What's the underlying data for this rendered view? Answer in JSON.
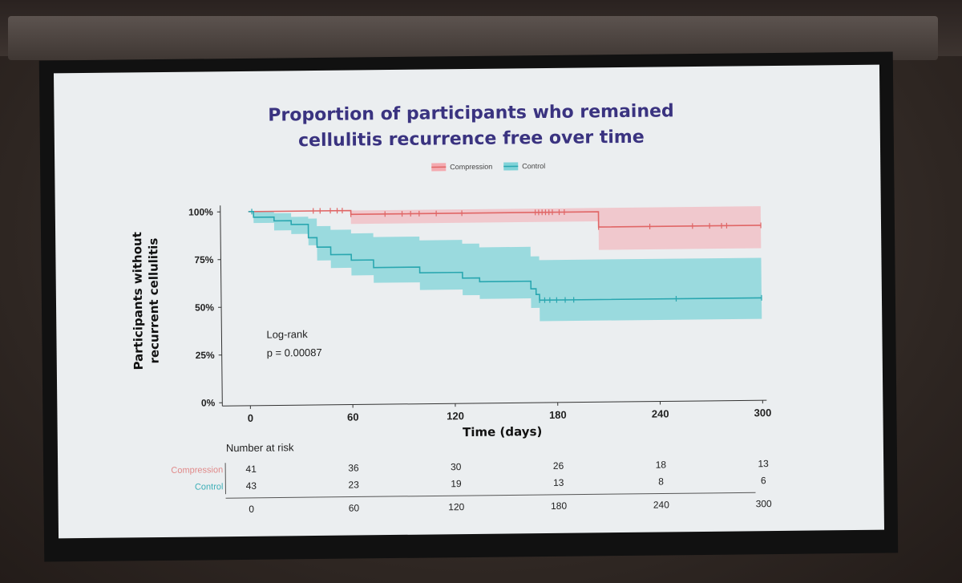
{
  "chart_data": {
    "type": "line",
    "title_lines": [
      "Proportion of participants who remained",
      "cellulitis recurrence free over time"
    ],
    "xlabel": "Time (days)",
    "ylabel_lines": [
      "Participants without",
      "recurrent cellulitis"
    ],
    "xlim": [
      0,
      300
    ],
    "ylim": [
      0,
      100
    ],
    "x_ticks": [
      "0",
      "60",
      "120",
      "180",
      "240",
      "300"
    ],
    "y_ticks": [
      "0%",
      "25%",
      "50%",
      "75%",
      "100%"
    ],
    "legend": [
      "Compression",
      "Control"
    ],
    "legend_placement": "top",
    "annotation": [
      "Log-rank",
      "p = 0.00087"
    ],
    "series": [
      {
        "name": "Compression",
        "color": "#e06666",
        "band_color": "#f4aab0",
        "step": [
          [
            0,
            100
          ],
          [
            60,
            100
          ],
          [
            60,
            98
          ],
          [
            205,
            98
          ],
          [
            205,
            90
          ],
          [
            300,
            90
          ]
        ],
        "ci_upper": [
          [
            0,
            100
          ],
          [
            300,
            100
          ]
        ],
        "ci_lower": [
          [
            0,
            100
          ],
          [
            60,
            100
          ],
          [
            60,
            93
          ],
          [
            205,
            93
          ],
          [
            205,
            78
          ],
          [
            300,
            78
          ]
        ],
        "censor_x": [
          38,
          42,
          48,
          52,
          55,
          60,
          80,
          90,
          95,
          100,
          110,
          125,
          168,
          170,
          172,
          174,
          176,
          178,
          182,
          185,
          205,
          235,
          260,
          270,
          277,
          280,
          300
        ]
      },
      {
        "name": "Control",
        "color": "#2aa7b0",
        "band_color": "#7fd3d8",
        "step": [
          [
            0,
            100
          ],
          [
            3,
            100
          ],
          [
            3,
            97
          ],
          [
            15,
            97
          ],
          [
            15,
            95
          ],
          [
            25,
            95
          ],
          [
            25,
            93
          ],
          [
            35,
            93
          ],
          [
            35,
            86
          ],
          [
            40,
            86
          ],
          [
            40,
            81
          ],
          [
            48,
            81
          ],
          [
            48,
            77
          ],
          [
            60,
            77
          ],
          [
            60,
            74
          ],
          [
            73,
            74
          ],
          [
            73,
            70
          ],
          [
            100,
            70
          ],
          [
            100,
            67
          ],
          [
            125,
            67
          ],
          [
            125,
            64
          ],
          [
            135,
            64
          ],
          [
            135,
            62
          ],
          [
            165,
            62
          ],
          [
            165,
            58
          ],
          [
            168,
            58
          ],
          [
            168,
            55
          ],
          [
            170,
            55
          ],
          [
            170,
            52
          ],
          [
            300,
            52
          ]
        ],
        "ci_upper": [
          [
            0,
            100
          ],
          [
            3,
            100
          ],
          [
            15,
            99
          ],
          [
            25,
            97
          ],
          [
            35,
            96
          ],
          [
            40,
            92
          ],
          [
            48,
            90
          ],
          [
            60,
            88
          ],
          [
            73,
            86
          ],
          [
            100,
            84
          ],
          [
            125,
            82
          ],
          [
            135,
            80
          ],
          [
            165,
            75
          ],
          [
            170,
            73
          ],
          [
            300,
            73
          ]
        ],
        "ci_lower": [
          [
            0,
            100
          ],
          [
            3,
            94
          ],
          [
            15,
            90
          ],
          [
            25,
            88
          ],
          [
            35,
            82
          ],
          [
            40,
            74
          ],
          [
            48,
            70
          ],
          [
            60,
            66
          ],
          [
            73,
            62
          ],
          [
            100,
            58
          ],
          [
            125,
            55
          ],
          [
            135,
            53
          ],
          [
            165,
            48
          ],
          [
            170,
            41
          ],
          [
            300,
            41
          ]
        ],
        "censor_x": [
          2,
          170,
          173,
          176,
          180,
          185,
          190,
          250,
          300
        ]
      }
    ]
  },
  "risk_table": {
    "title": "Number at risk",
    "rows": [
      {
        "name": "Compression",
        "values": [
          "41",
          "36",
          "30",
          "26",
          "18",
          "13"
        ]
      },
      {
        "name": "Control",
        "values": [
          "43",
          "23",
          "19",
          "13",
          "8",
          "6"
        ]
      }
    ],
    "x_ticks": [
      "0",
      "60",
      "120",
      "180",
      "240",
      "300"
    ]
  }
}
